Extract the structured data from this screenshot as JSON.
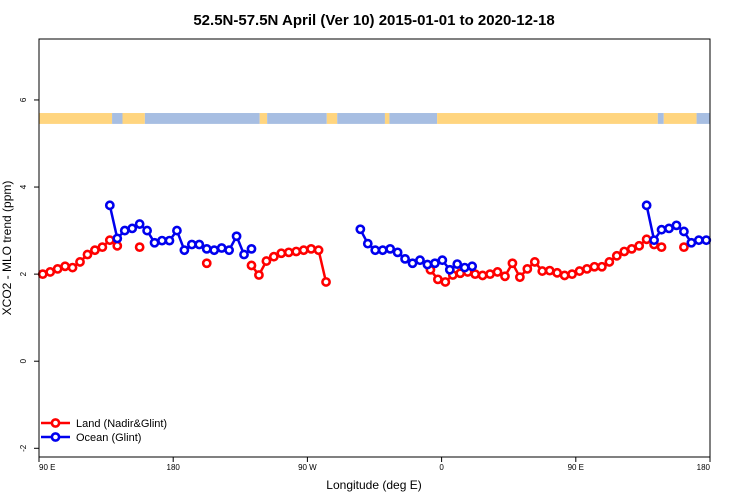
{
  "chart_data": {
    "type": "line",
    "title": "52.5N-57.5N April (Ver 10)   2015-01-01 to 2020-12-18",
    "xlabel": "Longitude (deg E)",
    "ylabel": "XCO2 - MLO trend (ppm)",
    "xlim": [
      90,
      540
    ],
    "ylim": [
      -2.2,
      7.4
    ],
    "x_ticks": [
      {
        "value": 90,
        "label": "90 E"
      },
      {
        "value": 180,
        "label": "180"
      },
      {
        "value": 270,
        "label": "90 W"
      },
      {
        "value": 360,
        "label": "0"
      },
      {
        "value": 450,
        "label": "90 E"
      },
      {
        "value": 540,
        "label": "180"
      }
    ],
    "y_ticks": [
      {
        "value": -2,
        "label": "-2"
      },
      {
        "value": 0,
        "label": "0"
      },
      {
        "value": 2,
        "label": "2"
      },
      {
        "value": 4,
        "label": "4"
      },
      {
        "value": 6,
        "label": "6"
      }
    ],
    "land_mask": {
      "y_range": [
        5.45,
        5.7
      ],
      "land_color": "#ffd57f",
      "ocean_color": "#a7bee2",
      "segments": [
        {
          "type": "land",
          "from": 90,
          "to": 139
        },
        {
          "type": "ocean",
          "from": 139,
          "to": 146
        },
        {
          "type": "land",
          "from": 146,
          "to": 161
        },
        {
          "type": "ocean",
          "from": 161,
          "to": 238
        },
        {
          "type": "land",
          "from": 238,
          "to": 243
        },
        {
          "type": "ocean",
          "from": 243,
          "to": 283
        },
        {
          "type": "land",
          "from": 283,
          "to": 290
        },
        {
          "type": "ocean",
          "from": 290,
          "to": 322
        },
        {
          "type": "land",
          "from": 322,
          "to": 325
        },
        {
          "type": "ocean",
          "from": 325,
          "to": 357
        },
        {
          "type": "land",
          "from": 357,
          "to": 505
        },
        {
          "type": "ocean",
          "from": 505,
          "to": 509
        },
        {
          "type": "land",
          "from": 509,
          "to": 531
        },
        {
          "type": "ocean",
          "from": 531,
          "to": 540
        }
      ]
    },
    "series": [
      {
        "name": "Land (Nadir&Glint)",
        "color": "#ff0000",
        "segments": [
          {
            "x": [
              92.5,
              97.5,
              102.5,
              107.5,
              112.5,
              117.5,
              122.5,
              127.5,
              132.5,
              137.5,
              142.5
            ],
            "y": [
              2.0,
              2.05,
              2.12,
              2.18,
              2.15,
              2.28,
              2.45,
              2.55,
              2.62,
              2.78,
              2.65
            ]
          },
          {
            "x": [
              157.5
            ],
            "y": [
              2.62
            ]
          },
          {
            "x": [
              202.5
            ],
            "y": [
              2.25
            ]
          },
          {
            "x": [
              232.5,
              237.5,
              242.5,
              247.5,
              252.5,
              257.5,
              262.5,
              267.5,
              272.5,
              277.5,
              282.5
            ],
            "y": [
              2.2,
              1.98,
              2.3,
              2.4,
              2.48,
              2.5,
              2.52,
              2.55,
              2.58,
              2.55,
              1.82
            ]
          },
          {
            "x": [
              352.5,
              357.5,
              362.5,
              367.5,
              372.5,
              377.5,
              382.5,
              387.5,
              392.5,
              397.5,
              402.5,
              407.5,
              412.5,
              417.5,
              422.5,
              427.5,
              432.5,
              437.5,
              442.5,
              447.5,
              452.5,
              457.5,
              462.5,
              467.5,
              472.5,
              477.5,
              482.5,
              487.5,
              492.5,
              497.5,
              502.5,
              507.5
            ],
            "y": [
              2.1,
              1.88,
              1.82,
              1.98,
              2.02,
              2.05,
              2.0,
              1.97,
              2.0,
              2.05,
              1.95,
              2.25,
              1.93,
              2.12,
              2.28,
              2.07,
              2.08,
              2.03,
              1.97,
              2.0,
              2.07,
              2.12,
              2.17,
              2.17,
              2.28,
              2.42,
              2.52,
              2.58,
              2.65,
              2.8,
              2.68,
              2.62
            ]
          },
          {
            "x": [
              522.5
            ],
            "y": [
              2.62
            ]
          }
        ]
      },
      {
        "name": "Ocean (Glint)",
        "color": "#0000ee",
        "segments": [
          {
            "x": [
              137.5,
              142.5,
              147.5,
              152.5,
              157.5,
              162.5,
              167.5,
              172.5,
              177.5,
              182.5,
              187.5,
              192.5,
              197.5,
              202.5,
              207.5,
              212.5,
              217.5,
              222.5,
              227.5,
              232.5
            ],
            "y": [
              3.58,
              2.82,
              3.0,
              3.05,
              3.15,
              3.0,
              2.72,
              2.77,
              2.77,
              3.0,
              2.55,
              2.68,
              2.68,
              2.58,
              2.55,
              2.6,
              2.55,
              2.87,
              2.45,
              2.58
            ]
          },
          {
            "x": [
              305.5,
              310.5,
              315.5,
              320.5,
              325.5,
              330.5,
              335.5,
              340.5,
              345.5,
              350.5,
              355.5,
              360.5,
              365.5,
              370.5,
              375.5,
              380.5
            ],
            "y": [
              3.03,
              2.7,
              2.55,
              2.55,
              2.58,
              2.5,
              2.35,
              2.25,
              2.32,
              2.22,
              2.25,
              2.32,
              2.1,
              2.23,
              2.15,
              2.18
            ]
          },
          {
            "x": [
              497.5,
              502.5,
              507.5,
              512.5,
              517.5,
              522.5,
              527.5,
              532.5,
              537.5
            ],
            "y": [
              3.58,
              2.78,
              3.02,
              3.05,
              3.12,
              2.98,
              2.72,
              2.78,
              2.78
            ]
          }
        ]
      }
    ],
    "legend": {
      "position": "bottom-left",
      "entries": [
        {
          "label": "Land (Nadir&Glint)",
          "color": "#ff0000"
        },
        {
          "label": "Ocean (Glint)",
          "color": "#0000ee"
        }
      ]
    },
    "grid": false
  }
}
